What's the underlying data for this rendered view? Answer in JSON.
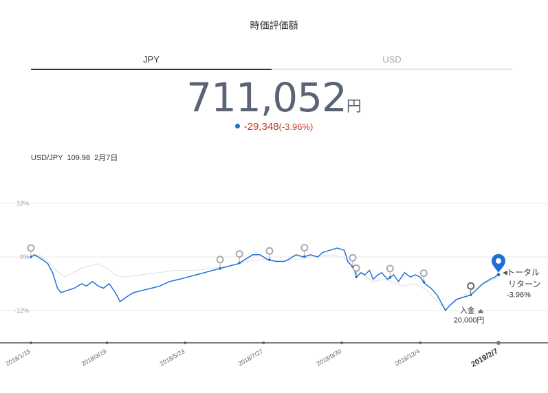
{
  "page": {
    "title": "時価評価額"
  },
  "tabs": {
    "jpy": "JPY",
    "usd": "USD"
  },
  "summary": {
    "value": "711,052",
    "unit": "円",
    "change": "-29,348",
    "change_pct": "(-3.96%)"
  },
  "rate": {
    "pair": "USD/JPY",
    "value": "109.98",
    "date": "2月7日"
  },
  "annotation": {
    "deposit_label": "入金",
    "deposit_amount": "20,000円",
    "total_label_1": "トータル",
    "total_label_2": "リターン",
    "total_value": "-3.96%"
  },
  "colors": {
    "main_line": "#1e6fd9",
    "benchmark_line": "#e3e3e3",
    "axis": "#555555",
    "pin_gray": "#aaaaaa",
    "pin_blue": "#1e6fd9"
  },
  "chart_data": {
    "type": "line",
    "y_unit": "%",
    "ylim": [
      -18,
      16
    ],
    "y_ticks": [
      {
        "value": 12,
        "label": "12%"
      },
      {
        "value": 0,
        "label": "0%"
      },
      {
        "value": -12,
        "label": "-12%"
      }
    ],
    "x_ticks": [
      "2018/1/15",
      "2018/3/19",
      "2018/5/23",
      "2018/7/27",
      "2018/9/30",
      "2018/12/4",
      "2019/2/7"
    ],
    "x_range": [
      "2018/1/15",
      "2019/2/7"
    ],
    "series": [
      {
        "role": "portfolio",
        "points": [
          [
            "2018/1/15",
            0.0
          ],
          [
            "2018/1/18",
            0.5
          ],
          [
            "2018/1/24",
            -0.5
          ],
          [
            "2018/1/29",
            -1.5
          ],
          [
            "2018/2/2",
            -3.5
          ],
          [
            "2018/2/6",
            -7.0
          ],
          [
            "2018/2/9",
            -8.0
          ],
          [
            "2018/2/14",
            -7.5
          ],
          [
            "2018/2/20",
            -7.0
          ],
          [
            "2018/2/26",
            -6.0
          ],
          [
            "2018/3/2",
            -6.5
          ],
          [
            "2018/3/7",
            -5.5
          ],
          [
            "2018/3/12",
            -6.5
          ],
          [
            "2018/3/16",
            -7.0
          ],
          [
            "2018/3/21",
            -6.0
          ],
          [
            "2018/3/26",
            -8.0
          ],
          [
            "2018/3/30",
            -10.0
          ],
          [
            "2018/4/4",
            -9.0
          ],
          [
            "2018/4/10",
            -8.0
          ],
          [
            "2018/4/17",
            -7.5
          ],
          [
            "2018/4/25",
            -7.0
          ],
          [
            "2018/5/2",
            -6.5
          ],
          [
            "2018/5/10",
            -5.5
          ],
          [
            "2018/5/18",
            -5.0
          ],
          [
            "2018/5/25",
            -4.5
          ],
          [
            "2018/6/1",
            -4.0
          ],
          [
            "2018/6/8",
            -3.5
          ],
          [
            "2018/6/15",
            -3.0
          ],
          [
            "2018/6/22",
            -2.5
          ],
          [
            "2018/6/29",
            -2.0
          ],
          [
            "2018/7/6",
            -1.5
          ],
          [
            "2018/7/12",
            -0.5
          ],
          [
            "2018/7/18",
            0.5
          ],
          [
            "2018/7/24",
            0.5
          ],
          [
            "2018/7/30",
            -0.5
          ],
          [
            "2018/8/6",
            -1.0
          ],
          [
            "2018/8/13",
            -1.0
          ],
          [
            "2018/8/17",
            -0.5
          ],
          [
            "2018/8/23",
            0.5
          ],
          [
            "2018/8/29",
            0.0
          ],
          [
            "2018/9/4",
            0.5
          ],
          [
            "2018/9/10",
            0.0
          ],
          [
            "2018/9/14",
            1.0
          ],
          [
            "2018/9/20",
            1.5
          ],
          [
            "2018/9/26",
            2.0
          ],
          [
            "2018/10/2",
            1.5
          ],
          [
            "2018/10/5",
            -1.0
          ],
          [
            "2018/10/10",
            -2.5
          ],
          [
            "2018/10/12",
            -4.5
          ],
          [
            "2018/10/16",
            -3.5
          ],
          [
            "2018/10/19",
            -4.0
          ],
          [
            "2018/10/23",
            -3.0
          ],
          [
            "2018/10/26",
            -5.0
          ],
          [
            "2018/10/30",
            -4.0
          ],
          [
            "2018/11/2",
            -3.5
          ],
          [
            "2018/11/7",
            -5.0
          ],
          [
            "2018/11/12",
            -4.0
          ],
          [
            "2018/11/16",
            -5.5
          ],
          [
            "2018/11/21",
            -3.5
          ],
          [
            "2018/11/26",
            -4.5
          ],
          [
            "2018/11/30",
            -4.0
          ],
          [
            "2018/12/4",
            -4.5
          ],
          [
            "2018/12/8",
            -6.0
          ],
          [
            "2018/12/13",
            -7.0
          ],
          [
            "2018/12/18",
            -8.5
          ],
          [
            "2018/12/21",
            -10.0
          ],
          [
            "2018/12/25",
            -12.0
          ],
          [
            "2018/12/28",
            -11.0
          ],
          [
            "2019/1/3",
            -9.5
          ],
          [
            "2019/1/9",
            -9.0
          ],
          [
            "2019/1/15",
            -8.5
          ],
          [
            "2019/1/21",
            -7.0
          ],
          [
            "2019/1/25",
            -6.0
          ],
          [
            "2019/1/31",
            -5.0
          ],
          [
            "2019/2/4",
            -4.5
          ],
          [
            "2019/2/7",
            -3.96
          ]
        ]
      },
      {
        "role": "benchmark",
        "points": [
          [
            "2018/1/15",
            0.0
          ],
          [
            "2018/1/22",
            0.5
          ],
          [
            "2018/1/29",
            -1.0
          ],
          [
            "2018/2/5",
            -3.0
          ],
          [
            "2018/2/12",
            -4.5
          ],
          [
            "2018/2/19",
            -3.5
          ],
          [
            "2018/2/26",
            -2.5
          ],
          [
            "2018/3/5",
            -2.0
          ],
          [
            "2018/3/12",
            -1.5
          ],
          [
            "2018/3/19",
            -2.5
          ],
          [
            "2018/3/26",
            -4.0
          ],
          [
            "2018/4/2",
            -4.5
          ],
          [
            "2018/4/16",
            -4.0
          ],
          [
            "2018/5/1",
            -3.5
          ],
          [
            "2018/5/15",
            -3.0
          ],
          [
            "2018/5/30",
            -3.0
          ],
          [
            "2018/6/15",
            -2.5
          ],
          [
            "2018/6/29",
            -2.0
          ],
          [
            "2018/7/13",
            -1.0
          ],
          [
            "2018/7/27",
            -0.5
          ],
          [
            "2018/8/10",
            -1.0
          ],
          [
            "2018/8/24",
            -0.5
          ],
          [
            "2018/9/7",
            0.0
          ],
          [
            "2018/9/21",
            0.5
          ],
          [
            "2018/10/1",
            0.0
          ],
          [
            "2018/10/8",
            -2.0
          ],
          [
            "2018/10/15",
            -3.5
          ],
          [
            "2018/10/26",
            -5.5
          ],
          [
            "2018/11/5",
            -5.0
          ],
          [
            "2018/11/19",
            -6.5
          ],
          [
            "2018/11/30",
            -6.0
          ],
          [
            "2018/12/10",
            -7.5
          ],
          [
            "2018/12/20",
            -10.5
          ],
          [
            "2018/12/26",
            -11.5
          ],
          [
            "2019/1/7",
            -9.0
          ],
          [
            "2019/1/21",
            -6.5
          ],
          [
            "2019/2/7",
            -4.5
          ]
        ]
      }
    ],
    "event_markers": [
      {
        "date": "2018/1/15",
        "kind": "gray"
      },
      {
        "date": "2018/6/21",
        "kind": "gray"
      },
      {
        "date": "2018/7/7",
        "kind": "gray"
      },
      {
        "date": "2018/8/1",
        "kind": "gray"
      },
      {
        "date": "2018/8/30",
        "kind": "gray"
      },
      {
        "date": "2018/10/9",
        "kind": "gray"
      },
      {
        "date": "2018/10/12",
        "kind": "gray"
      },
      {
        "date": "2018/11/9",
        "kind": "gray"
      },
      {
        "date": "2018/12/7",
        "kind": "gray"
      },
      {
        "date": "2019/1/15",
        "kind": "dark"
      },
      {
        "date": "2019/2/7",
        "kind": "blue"
      }
    ]
  }
}
